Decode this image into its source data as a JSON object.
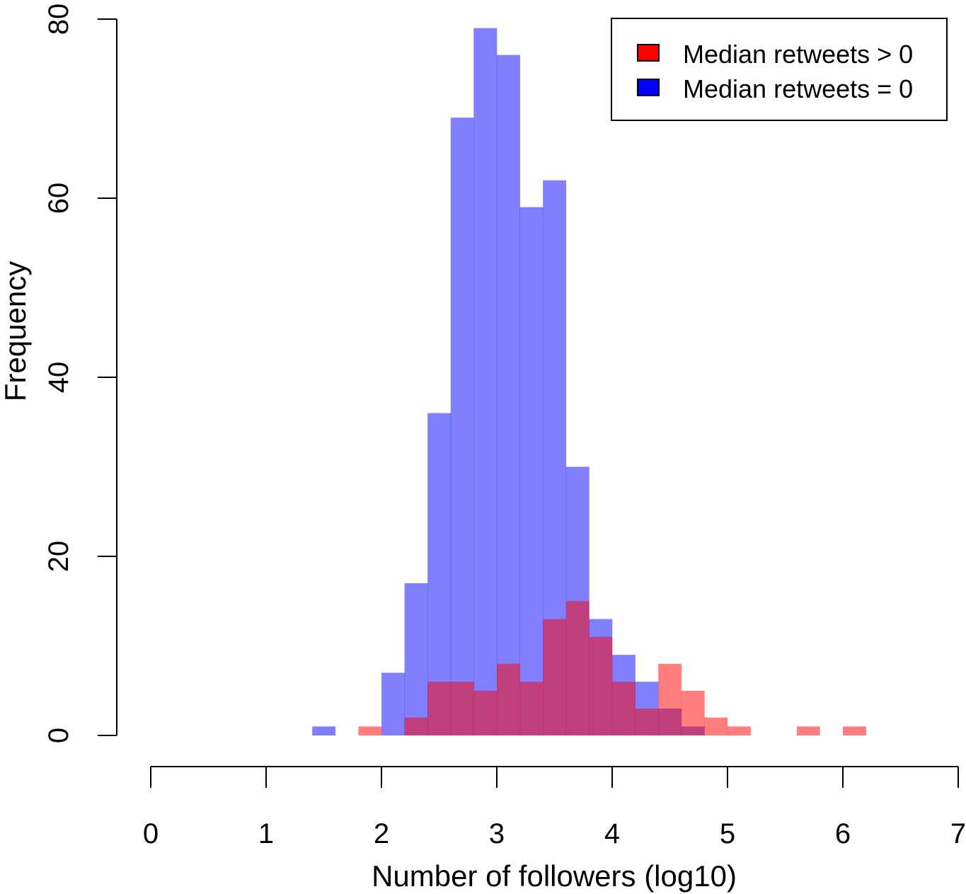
{
  "chart_data": {
    "type": "bar",
    "subtype": "overlapping-histogram",
    "title": "",
    "xlabel": "Number of followers (log10)",
    "ylabel": "Frequency",
    "xlim": [
      0,
      7
    ],
    "ylim": [
      0,
      80
    ],
    "xticks": [
      "0",
      "1",
      "2",
      "3",
      "4",
      "5",
      "6",
      "7"
    ],
    "yticks": [
      "0",
      "20",
      "40",
      "60",
      "80"
    ],
    "bin_width": 0.2,
    "grid": false,
    "legend": {
      "position": "top-right",
      "entries": [
        {
          "label": "Median retweets > 0",
          "color": "#ff0000"
        },
        {
          "label": "Median retweets = 0",
          "color": "#0000ff"
        }
      ]
    },
    "series": [
      {
        "name": "Median retweets = 0",
        "color": "#0000ff",
        "fill_opacity": 0.5,
        "bins": [
          {
            "x0": 1.4,
            "count": 1
          },
          {
            "x0": 2.0,
            "count": 7
          },
          {
            "x0": 2.2,
            "count": 17
          },
          {
            "x0": 2.4,
            "count": 36
          },
          {
            "x0": 2.6,
            "count": 69
          },
          {
            "x0": 2.8,
            "count": 79
          },
          {
            "x0": 3.0,
            "count": 76
          },
          {
            "x0": 3.2,
            "count": 59
          },
          {
            "x0": 3.4,
            "count": 62
          },
          {
            "x0": 3.6,
            "count": 30
          },
          {
            "x0": 3.8,
            "count": 13
          },
          {
            "x0": 4.0,
            "count": 9
          },
          {
            "x0": 4.2,
            "count": 6
          },
          {
            "x0": 4.4,
            "count": 3
          },
          {
            "x0": 4.6,
            "count": 1
          }
        ]
      },
      {
        "name": "Median retweets > 0",
        "color": "#ff0000",
        "fill_opacity": 0.5,
        "bins": [
          {
            "x0": 1.8,
            "count": 1
          },
          {
            "x0": 2.2,
            "count": 2
          },
          {
            "x0": 2.4,
            "count": 6
          },
          {
            "x0": 2.6,
            "count": 6
          },
          {
            "x0": 2.8,
            "count": 5
          },
          {
            "x0": 3.0,
            "count": 8
          },
          {
            "x0": 3.2,
            "count": 6
          },
          {
            "x0": 3.4,
            "count": 13
          },
          {
            "x0": 3.6,
            "count": 15
          },
          {
            "x0": 3.8,
            "count": 11
          },
          {
            "x0": 4.0,
            "count": 6
          },
          {
            "x0": 4.2,
            "count": 3
          },
          {
            "x0": 4.4,
            "count": 8
          },
          {
            "x0": 4.6,
            "count": 5
          },
          {
            "x0": 4.8,
            "count": 2
          },
          {
            "x0": 5.0,
            "count": 1
          },
          {
            "x0": 5.6,
            "count": 1
          },
          {
            "x0": 6.0,
            "count": 1
          }
        ]
      }
    ]
  }
}
